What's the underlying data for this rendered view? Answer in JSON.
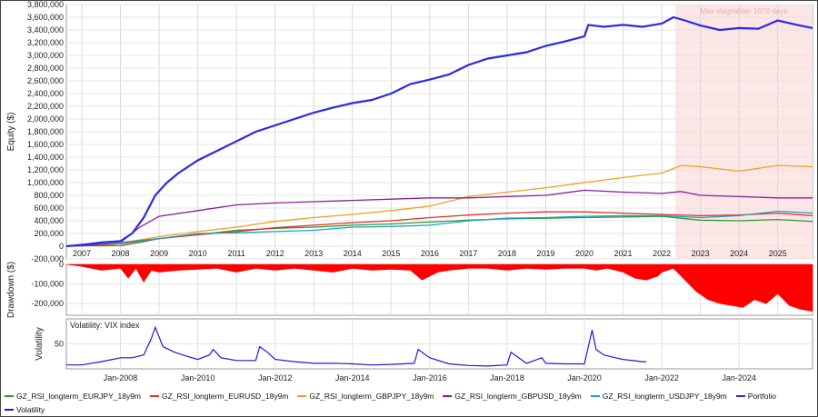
{
  "chart_data": [
    {
      "type": "line",
      "ylabel": "Equity ($)",
      "ylim": [
        -200000,
        3800000
      ],
      "yticks": [
        "-200,000",
        "0",
        "200,000",
        "400,000",
        "600,000",
        "800,000",
        "1,000,000",
        "1,200,000",
        "1,400,000",
        "1,600,000",
        "1,800,000",
        "2,000,000",
        "2,200,000",
        "2,400,000",
        "2,600,000",
        "2,800,000",
        "3,000,000",
        "3,200,000",
        "3,400,000",
        "3,600,000",
        "3,800,000"
      ],
      "ytick_values": [
        -200000,
        0,
        200000,
        400000,
        600000,
        800000,
        1000000,
        1200000,
        1400000,
        1600000,
        1800000,
        2000000,
        2200000,
        2400000,
        2600000,
        2800000,
        3000000,
        3200000,
        3400000,
        3600000,
        3800000
      ],
      "xlim": [
        2006.6,
        2025.9
      ],
      "xticks": [
        "2007",
        "2008",
        "2009",
        "2010",
        "2011",
        "2012",
        "2013",
        "2014",
        "2015",
        "2016",
        "2017",
        "2018",
        "2019",
        "2020",
        "2021",
        "2022",
        "2023",
        "2024",
        "2025"
      ],
      "annotation": "Max stagnation: 1070 days",
      "stagnation_range": [
        2022.35,
        2025.9
      ],
      "grid": true,
      "series": [
        {
          "name": "GZ_RSI_longterm_EURJPY_18y9m",
          "color": "#2e9a2e",
          "x": [
            2006.6,
            2007,
            2008,
            2008.5,
            2009,
            2010,
            2011,
            2012,
            2013,
            2014,
            2015,
            2016,
            2017,
            2018,
            2019,
            2020,
            2021,
            2022,
            2022.5,
            2023,
            2024,
            2025,
            2025.9
          ],
          "y": [
            0,
            5000,
            10000,
            60000,
            120000,
            180000,
            250000,
            280000,
            300000,
            330000,
            350000,
            380000,
            410000,
            430000,
            440000,
            450000,
            460000,
            470000,
            440000,
            410000,
            400000,
            420000,
            390000
          ]
        },
        {
          "name": "GZ_RSI_longterm_EURUSD_18y9m",
          "color": "#e0302a",
          "x": [
            2006.6,
            2007,
            2008,
            2009,
            2010,
            2011,
            2012,
            2013,
            2014,
            2015,
            2016,
            2017,
            2018,
            2019,
            2020,
            2021,
            2022,
            2023,
            2024,
            2025,
            2025.9
          ],
          "y": [
            0,
            10000,
            40000,
            120000,
            180000,
            230000,
            290000,
            330000,
            370000,
            400000,
            450000,
            490000,
            520000,
            540000,
            540000,
            520000,
            500000,
            480000,
            490000,
            520000,
            480000
          ]
        },
        {
          "name": "GZ_RSI_longterm_GBPJPY_18y9m",
          "color": "#f0a020",
          "x": [
            2006.6,
            2007,
            2008,
            2009,
            2010,
            2011,
            2012,
            2013,
            2014,
            2015,
            2016,
            2017,
            2018,
            2019,
            2020,
            2021,
            2022,
            2022.5,
            2023,
            2024,
            2025,
            2025.9
          ],
          "y": [
            0,
            20000,
            50000,
            150000,
            230000,
            300000,
            390000,
            450000,
            500000,
            560000,
            630000,
            780000,
            850000,
            920000,
            1000000,
            1080000,
            1150000,
            1270000,
            1250000,
            1180000,
            1270000,
            1250000
          ]
        },
        {
          "name": "GZ_RSI_longterm_GBPUSD_18y9m",
          "color": "#8a1e9a",
          "x": [
            2006.6,
            2007,
            2008,
            2008.5,
            2009,
            2010,
            2011,
            2012,
            2013,
            2014,
            2015,
            2016,
            2017,
            2018,
            2019,
            2020,
            2021,
            2022,
            2022.5,
            2023,
            2024,
            2025,
            2025.9
          ],
          "y": [
            0,
            10000,
            60000,
            300000,
            470000,
            560000,
            650000,
            680000,
            700000,
            720000,
            740000,
            760000,
            760000,
            780000,
            800000,
            880000,
            850000,
            830000,
            860000,
            800000,
            780000,
            760000,
            760000
          ]
        },
        {
          "name": "GZ_RSI_longterm_USDJPY_18y9m",
          "color": "#1ea0c8",
          "x": [
            2006.6,
            2007,
            2008,
            2009,
            2010,
            2011,
            2012,
            2013,
            2014,
            2015,
            2016,
            2017,
            2018,
            2019,
            2020,
            2021,
            2022,
            2023,
            2024,
            2025,
            2025.9
          ],
          "y": [
            0,
            30000,
            60000,
            120000,
            200000,
            210000,
            230000,
            250000,
            300000,
            310000,
            330000,
            400000,
            440000,
            450000,
            470000,
            480000,
            480000,
            450000,
            480000,
            550000,
            520000
          ]
        },
        {
          "name": "Portfolio",
          "color": "#2a2ae6",
          "x": [
            2006.6,
            2007,
            2007.5,
            2008,
            2008.3,
            2008.6,
            2008.9,
            2009.2,
            2009.5,
            2010,
            2010.5,
            2011,
            2011.5,
            2012,
            2012.5,
            2013,
            2013.5,
            2014,
            2014.5,
            2015,
            2015.5,
            2016,
            2016.5,
            2017,
            2017.5,
            2018,
            2018.5,
            2019,
            2019.5,
            2020,
            2020.1,
            2020.5,
            2021,
            2021.5,
            2022,
            2022.3,
            2022.6,
            2023,
            2023.5,
            2024,
            2024.5,
            2025,
            2025.5,
            2025.9
          ],
          "y": [
            0,
            20000,
            60000,
            80000,
            200000,
            450000,
            800000,
            1000000,
            1150000,
            1350000,
            1500000,
            1650000,
            1800000,
            1900000,
            2000000,
            2100000,
            2180000,
            2250000,
            2300000,
            2400000,
            2550000,
            2620000,
            2700000,
            2850000,
            2950000,
            3000000,
            3050000,
            3150000,
            3220000,
            3300000,
            3480000,
            3450000,
            3480000,
            3450000,
            3500000,
            3600000,
            3550000,
            3470000,
            3400000,
            3430000,
            3420000,
            3550000,
            3480000,
            3430000
          ]
        }
      ]
    },
    {
      "type": "area",
      "ylabel": "Drawdown ($)",
      "ylim": [
        -260000,
        0
      ],
      "yticks": [
        "0",
        "-100,000",
        "-200,000"
      ],
      "ytick_values": [
        0,
        -100000,
        -200000
      ],
      "color": "#ff0000",
      "x": [
        2006.6,
        2007,
        2007.5,
        2008,
        2008.2,
        2008.4,
        2008.6,
        2008.8,
        2009,
        2009.5,
        2010,
        2010.5,
        2011,
        2011.5,
        2012,
        2012.5,
        2013,
        2013.5,
        2014,
        2014.5,
        2015,
        2015.5,
        2015.8,
        2016,
        2016.2,
        2016.5,
        2017,
        2017.5,
        2018,
        2018.5,
        2019,
        2019.5,
        2020,
        2020.3,
        2020.6,
        2021,
        2021.3,
        2021.6,
        2021.9,
        2022,
        2022.3,
        2022.6,
        2022.9,
        2023.2,
        2023.5,
        2023.8,
        2024.1,
        2024.4,
        2024.7,
        2025,
        2025.3,
        2025.6,
        2025.9
      ],
      "y": [
        0,
        -10000,
        -30000,
        -20000,
        -70000,
        -20000,
        -90000,
        -30000,
        -40000,
        -30000,
        -25000,
        -20000,
        -40000,
        -20000,
        -30000,
        -20000,
        -30000,
        -40000,
        -20000,
        -30000,
        -25000,
        -30000,
        -80000,
        -60000,
        -40000,
        -30000,
        -20000,
        -20000,
        -30000,
        -20000,
        -25000,
        -20000,
        -20000,
        -30000,
        -20000,
        -40000,
        -70000,
        -80000,
        -60000,
        -40000,
        -20000,
        -80000,
        -140000,
        -180000,
        -200000,
        -210000,
        -220000,
        -180000,
        -200000,
        -150000,
        -210000,
        -230000,
        -240000
      ]
    },
    {
      "type": "line",
      "title": "Volatility: VIX index",
      "ylabel": "Volatility",
      "ylim": [
        5,
        95
      ],
      "yticks": [
        "50"
      ],
      "ytick_values": [
        50
      ],
      "xticks": [
        "Jan-2008",
        "Jan-2010",
        "Jan-2012",
        "Jan-2014",
        "Jan-2016",
        "Jan-2018",
        "Jan-2020",
        "Jan-2022",
        "Jan-2024"
      ],
      "xtick_values": [
        2008,
        2010,
        2012,
        2014,
        2016,
        2018,
        2020,
        2022,
        2024
      ],
      "color": "#1a1ae0",
      "x": [
        2006.6,
        2007,
        2007.5,
        2007.8,
        2008,
        2008.3,
        2008.6,
        2008.8,
        2008.9,
        2009.1,
        2009.4,
        2009.7,
        2010,
        2010.3,
        2010.4,
        2010.6,
        2011,
        2011.5,
        2011.6,
        2011.8,
        2012,
        2012.5,
        2013,
        2013.5,
        2014,
        2014.5,
        2015,
        2015.6,
        2015.7,
        2016,
        2016.5,
        2017,
        2017.5,
        2018,
        2018.1,
        2018.5,
        2018.9,
        2019,
        2019.5,
        2020,
        2020.2,
        2020.3,
        2020.5,
        2020.8,
        2021,
        2021.5,
        2021.6
      ],
      "y": [
        12,
        12,
        18,
        22,
        25,
        25,
        30,
        60,
        80,
        45,
        35,
        28,
        22,
        30,
        40,
        25,
        20,
        20,
        45,
        35,
        22,
        18,
        15,
        15,
        14,
        12,
        13,
        15,
        40,
        25,
        14,
        11,
        10,
        12,
        35,
        15,
        25,
        15,
        14,
        14,
        75,
        40,
        30,
        25,
        22,
        18,
        18
      ]
    }
  ],
  "legend": [
    {
      "label": "GZ_RSI_longterm_EURJPY_18y9m",
      "color": "#2e9a2e"
    },
    {
      "label": "GZ_RSI_longterm_EURUSD_18y9m",
      "color": "#e0302a"
    },
    {
      "label": "GZ_RSI_longterm_GBPJPY_18y9m",
      "color": "#f0a020"
    },
    {
      "label": "GZ_RSI_longterm_GBPUSD_18y9m",
      "color": "#8a1e9a"
    },
    {
      "label": "GZ_RSI_longterm_USDJPY_18y9m",
      "color": "#1ea0c8"
    },
    {
      "label": "Portfolio",
      "color": "#2a2ae6"
    },
    {
      "label": "Volatility",
      "color": "#1a1ae0"
    }
  ]
}
